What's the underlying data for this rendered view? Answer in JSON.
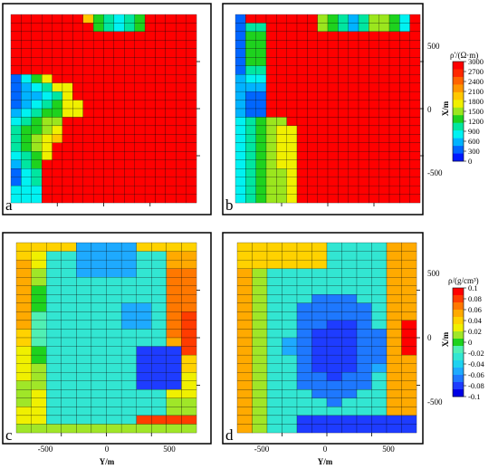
{
  "palette": {
    "res_colors": [
      "#0019ff",
      "#0066ff",
      "#00b3ff",
      "#00f2f2",
      "#00e6a0",
      "#1ed21e",
      "#9be61e",
      "#f0f000",
      "#ffc800",
      "#ff9600",
      "#ff6400",
      "#ff2800",
      "#ff0000"
    ],
    "den_colors": [
      "#0000e6",
      "#1e3cff",
      "#1e78ff",
      "#1eaaff",
      "#1ed2f0",
      "#32e6d2",
      "#50f0b4",
      "#1ed21e",
      "#a0e628",
      "#f0f000",
      "#ffd200",
      "#ffaa00",
      "#ff7800",
      "#ff3c00",
      "#ff0000"
    ]
  },
  "chart_data": [
    {
      "type": "heatmap",
      "panel_label": "a",
      "quantity": "resistivity",
      "cells": "approximate resistivity (Ω·m) on a 20-column grid; mostly ~3000 with a low-resistivity belt along the left/west edge and a small low zone near the top",
      "xlabel": "",
      "ylabel": "",
      "xlim": [
        -720,
        720
      ],
      "ylim": [
        -720,
        720
      ]
    },
    {
      "type": "heatmap",
      "panel_label": "b",
      "quantity": "resistivity",
      "xlabel": "",
      "ylabel": "X/m",
      "yticks": [
        500,
        0,
        -500
      ],
      "xlim": [
        -720,
        720
      ],
      "ylim": [
        -720,
        720
      ]
    },
    {
      "type": "heatmap",
      "panel_label": "c",
      "quantity": "density",
      "xlabel": "Y/m",
      "ylabel": "",
      "xticks": [
        -500,
        0,
        500
      ],
      "xlim": [
        -720,
        720
      ],
      "ylim": [
        -720,
        720
      ]
    },
    {
      "type": "heatmap",
      "panel_label": "d",
      "quantity": "density",
      "xlabel": "Y/m",
      "ylabel": "X/m",
      "xticks": [
        -500,
        0,
        500
      ],
      "yticks": [
        500,
        0,
        -500
      ],
      "xlim": [
        -720,
        720
      ],
      "ylim": [
        -720,
        720
      ]
    }
  ],
  "colorbars": {
    "resistivity": {
      "title": "ρ'/(Ω·m)",
      "ticks": [
        "3000",
        "2700",
        "2400",
        "2100",
        "1800",
        "1500",
        "1200",
        "900",
        "600",
        "300",
        "0"
      ]
    },
    "density": {
      "title": "ρ/(g/cm³)",
      "ticks": [
        "0.1",
        "0.08",
        "0.06",
        "0.04",
        "0.02",
        "0",
        "-0.02",
        "-0.04",
        "-0.06",
        "-0.08",
        "-0.1"
      ]
    }
  }
}
